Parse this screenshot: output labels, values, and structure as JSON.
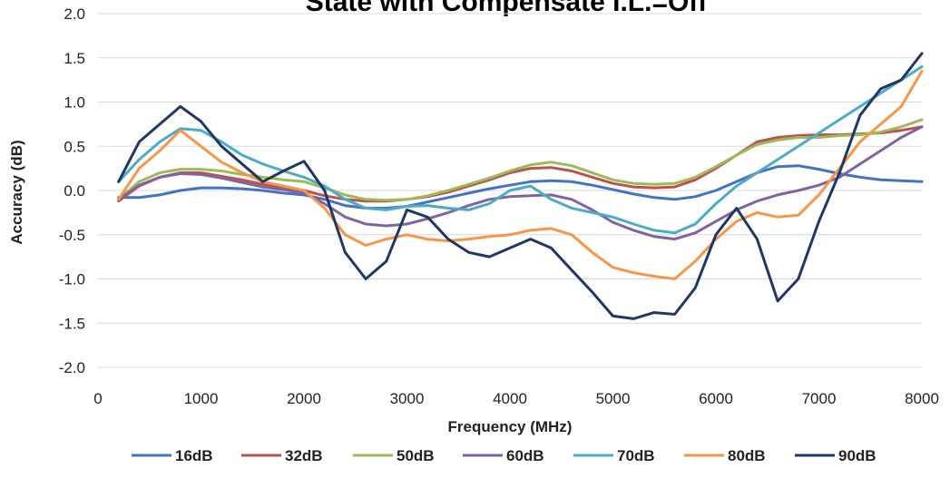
{
  "chart_data": {
    "type": "line",
    "title": "State with Compensate I.L.=Off",
    "xlabel": "Frequency (MHz)",
    "ylabel": "Accuracy (dB)",
    "xlim": [
      0,
      8000
    ],
    "ylim": [
      -2.0,
      2.0
    ],
    "x_ticks": [
      "0",
      "1000",
      "2000",
      "3000",
      "4000",
      "5000",
      "6000",
      "7000",
      "8000"
    ],
    "y_ticks": [
      "2.0",
      "1.5",
      "1.0",
      "0.5",
      "0.0",
      "-0.5",
      "-1.0",
      "-1.5",
      "-2.0"
    ],
    "grid": true,
    "legend_position": "bottom",
    "x": [
      200,
      400,
      600,
      800,
      1000,
      1200,
      1400,
      1600,
      1800,
      2000,
      2200,
      2400,
      2600,
      2800,
      3000,
      3200,
      3400,
      3600,
      3800,
      4000,
      4200,
      4400,
      4600,
      4800,
      5000,
      5200,
      5400,
      5600,
      5800,
      6000,
      6200,
      6400,
      6600,
      6800,
      7000,
      7200,
      7400,
      7600,
      7800,
      8000
    ],
    "series": [
      {
        "name": "16dB",
        "color": "#4472C4",
        "values": [
          -0.08,
          -0.08,
          -0.05,
          0.0,
          0.03,
          0.03,
          0.02,
          0.0,
          -0.03,
          -0.05,
          -0.1,
          -0.17,
          -0.2,
          -0.2,
          -0.18,
          -0.13,
          -0.08,
          -0.03,
          0.02,
          0.06,
          0.1,
          0.11,
          0.1,
          0.06,
          0.01,
          -0.04,
          -0.08,
          -0.1,
          -0.07,
          0.0,
          0.1,
          0.2,
          0.27,
          0.28,
          0.24,
          0.19,
          0.15,
          0.12,
          0.11,
          0.1
        ]
      },
      {
        "name": "32dB",
        "color": "#C0504D",
        "values": [
          -0.12,
          0.05,
          0.15,
          0.2,
          0.2,
          0.16,
          0.12,
          0.07,
          0.03,
          0.0,
          -0.06,
          -0.1,
          -0.12,
          -0.12,
          -0.1,
          -0.07,
          -0.02,
          0.05,
          0.12,
          0.2,
          0.25,
          0.26,
          0.22,
          0.15,
          0.08,
          0.04,
          0.03,
          0.04,
          0.12,
          0.25,
          0.4,
          0.55,
          0.6,
          0.62,
          0.63,
          0.63,
          0.64,
          0.65,
          0.68,
          0.72
        ]
      },
      {
        "name": "50dB",
        "color": "#9BBB59",
        "values": [
          -0.1,
          0.1,
          0.2,
          0.24,
          0.24,
          0.22,
          0.18,
          0.15,
          0.12,
          0.1,
          0.03,
          -0.05,
          -0.1,
          -0.11,
          -0.1,
          -0.06,
          0.0,
          0.07,
          0.14,
          0.22,
          0.29,
          0.32,
          0.28,
          0.2,
          0.12,
          0.08,
          0.07,
          0.08,
          0.15,
          0.27,
          0.4,
          0.52,
          0.57,
          0.6,
          0.6,
          0.62,
          0.63,
          0.66,
          0.72,
          0.8
        ]
      },
      {
        "name": "60dB",
        "color": "#8064A2",
        "values": [
          -0.1,
          0.06,
          0.15,
          0.19,
          0.18,
          0.14,
          0.09,
          0.04,
          0.01,
          -0.03,
          -0.15,
          -0.3,
          -0.38,
          -0.4,
          -0.38,
          -0.32,
          -0.25,
          -0.17,
          -0.1,
          -0.07,
          -0.06,
          -0.05,
          -0.1,
          -0.22,
          -0.36,
          -0.45,
          -0.52,
          -0.55,
          -0.48,
          -0.35,
          -0.22,
          -0.12,
          -0.05,
          0.0,
          0.06,
          0.15,
          0.3,
          0.45,
          0.6,
          0.72
        ]
      },
      {
        "name": "70dB",
        "color": "#4BACC6",
        "values": [
          0.1,
          0.35,
          0.55,
          0.7,
          0.68,
          0.55,
          0.4,
          0.3,
          0.22,
          0.15,
          0.05,
          -0.1,
          -0.2,
          -0.22,
          -0.18,
          -0.17,
          -0.2,
          -0.22,
          -0.15,
          0.0,
          0.05,
          -0.1,
          -0.2,
          -0.25,
          -0.3,
          -0.38,
          -0.45,
          -0.48,
          -0.38,
          -0.15,
          0.05,
          0.2,
          0.35,
          0.5,
          0.65,
          0.8,
          0.95,
          1.1,
          1.25,
          1.4
        ]
      },
      {
        "name": "80dB",
        "color": "#F79646",
        "values": [
          -0.1,
          0.25,
          0.45,
          0.68,
          0.5,
          0.32,
          0.2,
          0.1,
          0.05,
          0.0,
          -0.2,
          -0.5,
          -0.62,
          -0.55,
          -0.5,
          -0.55,
          -0.57,
          -0.55,
          -0.52,
          -0.5,
          -0.45,
          -0.43,
          -0.5,
          -0.7,
          -0.87,
          -0.93,
          -0.97,
          -1.0,
          -0.8,
          -0.55,
          -0.35,
          -0.25,
          -0.3,
          -0.28,
          -0.05,
          0.25,
          0.55,
          0.75,
          0.95,
          1.35
        ]
      },
      {
        "name": "90dB",
        "color": "#1F3864",
        "values": [
          0.1,
          0.55,
          0.75,
          0.95,
          0.78,
          0.5,
          0.3,
          0.1,
          0.22,
          0.33,
          0.0,
          -0.7,
          -1.0,
          -0.8,
          -0.22,
          -0.3,
          -0.55,
          -0.7,
          -0.75,
          -0.65,
          -0.55,
          -0.65,
          -0.9,
          -1.15,
          -1.42,
          -1.45,
          -1.38,
          -1.4,
          -1.1,
          -0.5,
          -0.2,
          -0.55,
          -1.25,
          -1.0,
          -0.35,
          0.2,
          0.85,
          1.15,
          1.25,
          1.55
        ]
      }
    ]
  }
}
